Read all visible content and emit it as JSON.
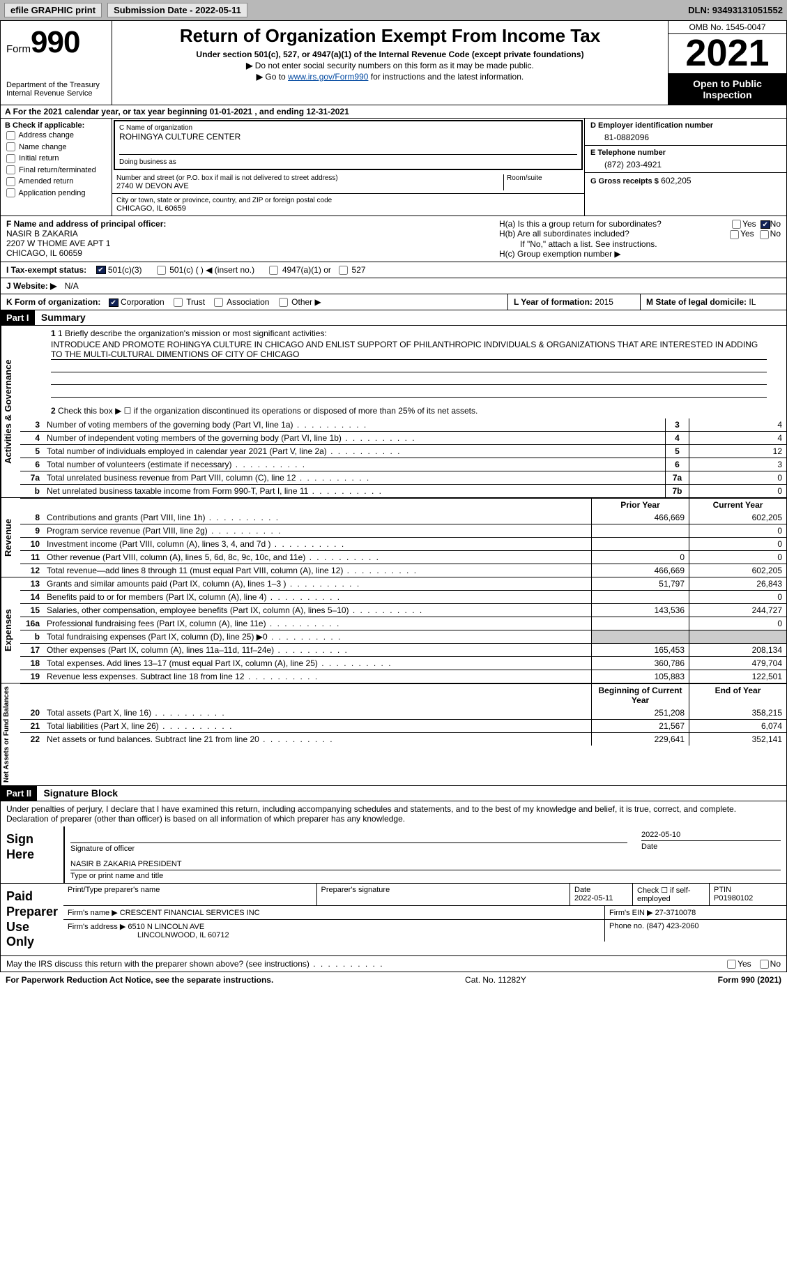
{
  "topbar": {
    "efile_label": "efile GRAPHIC print",
    "submission_label": "Submission Date - 2022-05-11",
    "dln_label": "DLN: 93493131051552"
  },
  "header": {
    "form_label": "Form",
    "form_number": "990",
    "dept": "Department of the Treasury",
    "irs": "Internal Revenue Service",
    "title": "Return of Organization Exempt From Income Tax",
    "subtitle": "Under section 501(c), 527, or 4947(a)(1) of the Internal Revenue Code (except private foundations)",
    "note1": "Do not enter social security numbers on this form as it may be made public.",
    "note2_pre": "Go to ",
    "note2_link": "www.irs.gov/Form990",
    "note2_post": " for instructions and the latest information.",
    "omb": "OMB No. 1545-0047",
    "year": "2021",
    "open": "Open to Public Inspection"
  },
  "line_a": "For the 2021 calendar year, or tax year beginning 01-01-2021   , and ending 12-31-2021",
  "box_b": {
    "title": "B Check if applicable:",
    "opt1": "Address change",
    "opt2": "Name change",
    "opt3": "Initial return",
    "opt4": "Final return/terminated",
    "opt5": "Amended return",
    "opt6": "Application pending"
  },
  "box_c": {
    "name_label": "C Name of organization",
    "name": "ROHINGYA CULTURE CENTER",
    "dba_label": "Doing business as",
    "dba": "",
    "street_label": "Number and street (or P.O. box if mail is not delivered to street address)",
    "room_label": "Room/suite",
    "street": "2740 W DEVON AVE",
    "city_label": "City or town, state or province, country, and ZIP or foreign postal code",
    "city": "CHICAGO, IL  60659"
  },
  "box_d": {
    "label": "D Employer identification number",
    "value": "81-0882096"
  },
  "box_e": {
    "label": "E Telephone number",
    "value": "(872) 203-4921"
  },
  "box_g": {
    "label": "G Gross receipts $",
    "value": "602,205"
  },
  "box_f": {
    "label": "F Name and address of principal officer:",
    "name": "NASIR B ZAKARIA",
    "addr1": "2207 W THOME AVE APT 1",
    "addr2": "CHICAGO, IL  60659"
  },
  "box_h": {
    "ha": "H(a)  Is this a group return for subordinates?",
    "hb": "H(b)  Are all subordinates included?",
    "hb_note": "If \"No,\" attach a list. See instructions.",
    "hc": "H(c)  Group exemption number ▶",
    "yes": "Yes",
    "no": "No"
  },
  "box_i": {
    "label": "I  Tax-exempt status:",
    "opt1": "501(c)(3)",
    "opt2": "501(c) (  ) ◀ (insert no.)",
    "opt3": "4947(a)(1) or",
    "opt4": "527"
  },
  "box_j": {
    "label": "J  Website: ▶",
    "value": "N/A"
  },
  "box_k": {
    "label": "K Form of organization:",
    "opt1": "Corporation",
    "opt2": "Trust",
    "opt3": "Association",
    "opt4": "Other ▶"
  },
  "box_l": {
    "label": "L Year of formation:",
    "value": "2015"
  },
  "box_m": {
    "label": "M State of legal domicile:",
    "value": "IL"
  },
  "part1": {
    "hdr": "Part I",
    "title": "Summary",
    "q1_label": "1  Briefly describe the organization's mission or most significant activities:",
    "q1_text": "INTRODUCE AND PROMOTE ROHINGYA CULTURE IN CHICAGO AND ENLIST SUPPORT OF PHILANTHROPIC INDIVIDUALS & ORGANIZATIONS THAT ARE INTERESTED IN ADDING TO THE MULTI-CULTURAL DIMENTIONS OF CITY OF CHICAGO",
    "q2_label": "Check this box ▶ ☐ if the organization discontinued its operations or disposed of more than 25% of its net assets.",
    "vlabel_ag": "Activities & Governance",
    "vlabel_rev": "Revenue",
    "vlabel_exp": "Expenses",
    "vlabel_net": "Net Assets or Fund Balances",
    "col_prior": "Prior Year",
    "col_current": "Current Year",
    "col_beg": "Beginning of Current Year",
    "col_end": "End of Year",
    "lines_ag": [
      {
        "n": "3",
        "t": "Number of voting members of the governing body (Part VI, line 1a)",
        "box": "3",
        "v": "4"
      },
      {
        "n": "4",
        "t": "Number of independent voting members of the governing body (Part VI, line 1b)",
        "box": "4",
        "v": "4"
      },
      {
        "n": "5",
        "t": "Total number of individuals employed in calendar year 2021 (Part V, line 2a)",
        "box": "5",
        "v": "12"
      },
      {
        "n": "6",
        "t": "Total number of volunteers (estimate if necessary)",
        "box": "6",
        "v": "3"
      },
      {
        "n": "7a",
        "t": "Total unrelated business revenue from Part VIII, column (C), line 12",
        "box": "7a",
        "v": "0"
      },
      {
        "n": "b",
        "t": "Net unrelated business taxable income from Form 990-T, Part I, line 11",
        "box": "7b",
        "v": "0"
      }
    ],
    "lines_rev": [
      {
        "n": "8",
        "t": "Contributions and grants (Part VIII, line 1h)",
        "p": "466,669",
        "c": "602,205"
      },
      {
        "n": "9",
        "t": "Program service revenue (Part VIII, line 2g)",
        "p": "",
        "c": "0"
      },
      {
        "n": "10",
        "t": "Investment income (Part VIII, column (A), lines 3, 4, and 7d )",
        "p": "",
        "c": "0"
      },
      {
        "n": "11",
        "t": "Other revenue (Part VIII, column (A), lines 5, 6d, 8c, 9c, 10c, and 11e)",
        "p": "0",
        "c": "0"
      },
      {
        "n": "12",
        "t": "Total revenue—add lines 8 through 11 (must equal Part VIII, column (A), line 12)",
        "p": "466,669",
        "c": "602,205"
      }
    ],
    "lines_exp": [
      {
        "n": "13",
        "t": "Grants and similar amounts paid (Part IX, column (A), lines 1–3 )",
        "p": "51,797",
        "c": "26,843"
      },
      {
        "n": "14",
        "t": "Benefits paid to or for members (Part IX, column (A), line 4)",
        "p": "",
        "c": "0"
      },
      {
        "n": "15",
        "t": "Salaries, other compensation, employee benefits (Part IX, column (A), lines 5–10)",
        "p": "143,536",
        "c": "244,727"
      },
      {
        "n": "16a",
        "t": "Professional fundraising fees (Part IX, column (A), line 11e)",
        "p": "",
        "c": "0"
      },
      {
        "n": "b",
        "t": "Total fundraising expenses (Part IX, column (D), line 25) ▶0",
        "p": "shaded",
        "c": "shaded"
      },
      {
        "n": "17",
        "t": "Other expenses (Part IX, column (A), lines 11a–11d, 11f–24e)",
        "p": "165,453",
        "c": "208,134"
      },
      {
        "n": "18",
        "t": "Total expenses. Add lines 13–17 (must equal Part IX, column (A), line 25)",
        "p": "360,786",
        "c": "479,704"
      },
      {
        "n": "19",
        "t": "Revenue less expenses. Subtract line 18 from line 12",
        "p": "105,883",
        "c": "122,501"
      }
    ],
    "lines_net": [
      {
        "n": "20",
        "t": "Total assets (Part X, line 16)",
        "p": "251,208",
        "c": "358,215"
      },
      {
        "n": "21",
        "t": "Total liabilities (Part X, line 26)",
        "p": "21,567",
        "c": "6,074"
      },
      {
        "n": "22",
        "t": "Net assets or fund balances. Subtract line 21 from line 20",
        "p": "229,641",
        "c": "352,141"
      }
    ]
  },
  "part2": {
    "hdr": "Part II",
    "title": "Signature Block",
    "decl": "Under penalties of perjury, I declare that I have examined this return, including accompanying schedules and statements, and to the best of my knowledge and belief, it is true, correct, and complete. Declaration of preparer (other than officer) is based on all information of which preparer has any knowledge.",
    "sign_here": "Sign Here",
    "sig_officer": "Signature of officer",
    "sig_date": "2022-05-10",
    "date_label": "Date",
    "officer_name": "NASIR B ZAKARIA  PRESIDENT",
    "type_name": "Type or print name and title",
    "paid_prep": "Paid Preparer Use Only",
    "prep_name_label": "Print/Type preparer's name",
    "prep_sig_label": "Preparer's signature",
    "prep_date_label": "Date",
    "prep_date": "2022-05-11",
    "check_self": "Check ☐ if self-employed",
    "ptin_label": "PTIN",
    "ptin": "P01980102",
    "firm_name_label": "Firm's name    ▶",
    "firm_name": "CRESCENT FINANCIAL SERVICES INC",
    "firm_ein_label": "Firm's EIN ▶",
    "firm_ein": "27-3710078",
    "firm_addr_label": "Firm's address ▶",
    "firm_addr1": "6510 N LINCOLN AVE",
    "firm_addr2": "LINCOLNWOOD, IL  60712",
    "phone_label": "Phone no.",
    "phone": "(847) 423-2060",
    "discuss": "May the IRS discuss this return with the preparer shown above? (see instructions)"
  },
  "footer": {
    "left": "For Paperwork Reduction Act Notice, see the separate instructions.",
    "mid": "Cat. No. 11282Y",
    "right": "Form 990 (2021)"
  },
  "colors": {
    "topbar_bg": "#b8b8b8",
    "black": "#000000",
    "link": "#0048a0",
    "shaded": "#cccccc"
  }
}
